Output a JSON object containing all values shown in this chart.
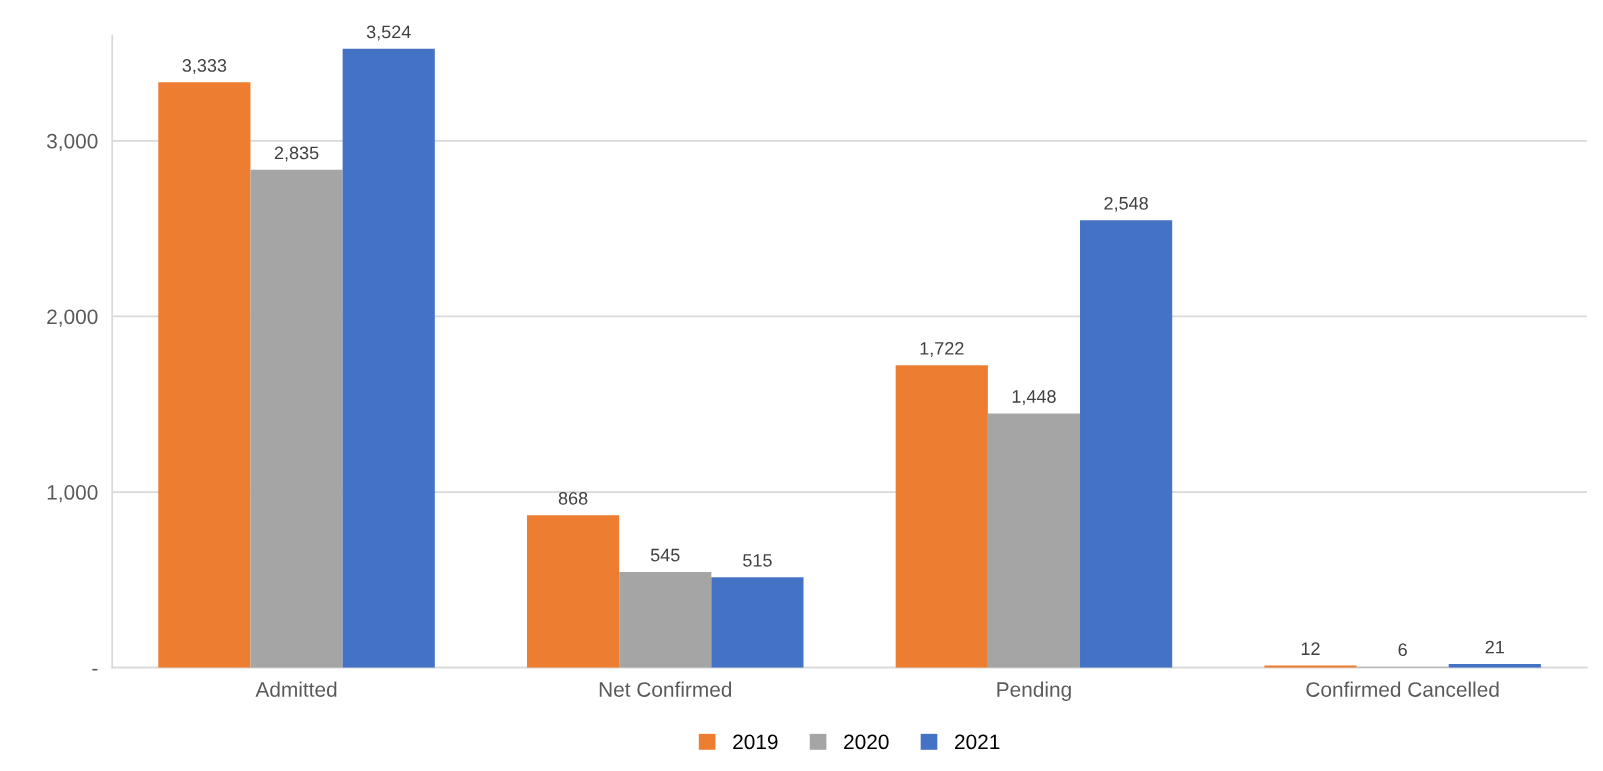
{
  "chart_data": {
    "type": "bar",
    "categories": [
      "Admitted",
      "Net Confirmed",
      "Pending",
      "Confirmed Cancelled"
    ],
    "series": [
      {
        "name": "2019",
        "color": "#ed7d31",
        "values": [
          3333,
          868,
          1722,
          12
        ],
        "value_labels": [
          "3,333",
          "868",
          "1,722",
          "12"
        ]
      },
      {
        "name": "2020",
        "color": "#a5a5a5",
        "values": [
          2835,
          545,
          1448,
          6
        ],
        "value_labels": [
          "2,835",
          "545",
          "1,448",
          "6"
        ]
      },
      {
        "name": "2021",
        "color": "#4472c4",
        "values": [
          3524,
          515,
          2548,
          21
        ],
        "value_labels": [
          "3,524",
          "515",
          "2,548",
          "21"
        ]
      }
    ],
    "yticks": [
      {
        "value": 0,
        "label": "-"
      },
      {
        "value": 1000,
        "label": "1,000"
      },
      {
        "value": 2000,
        "label": "2,000"
      },
      {
        "value": 3000,
        "label": "3,000"
      }
    ],
    "ylim": [
      0,
      3600
    ],
    "grid": "y",
    "legend": "bottom"
  }
}
